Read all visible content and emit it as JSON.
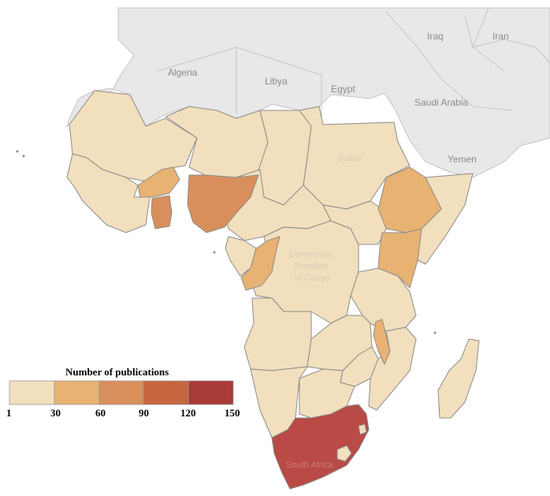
{
  "map_labels": {
    "algeria": "Algeria",
    "libya": "Libya",
    "egypt": "Egypt",
    "iraq": "Iraq",
    "iran": "Iran",
    "saudi_arabia": "Saudi Arabia",
    "yemen": "Yemen",
    "sudan": "Sudan",
    "drc_line1": "Democratic",
    "drc_line2": "Republic",
    "drc_line3": "of Congo",
    "south_africa": "South Africa"
  },
  "legend": {
    "title": "Number  of publications",
    "ticks": [
      "1",
      "30",
      "60",
      "90",
      "120",
      "150"
    ],
    "bin_colors": [
      "#f2dfbd",
      "#e8b273",
      "#d98f5c",
      "#c5663f",
      "#a93b38"
    ]
  },
  "colors": {
    "base": "#f2dfbd",
    "bin_30_60": "#e8b273",
    "bin_60_90": "#d98f5c",
    "bin_120_150": "#b94a45",
    "background_land": "#e8e8e8"
  }
}
